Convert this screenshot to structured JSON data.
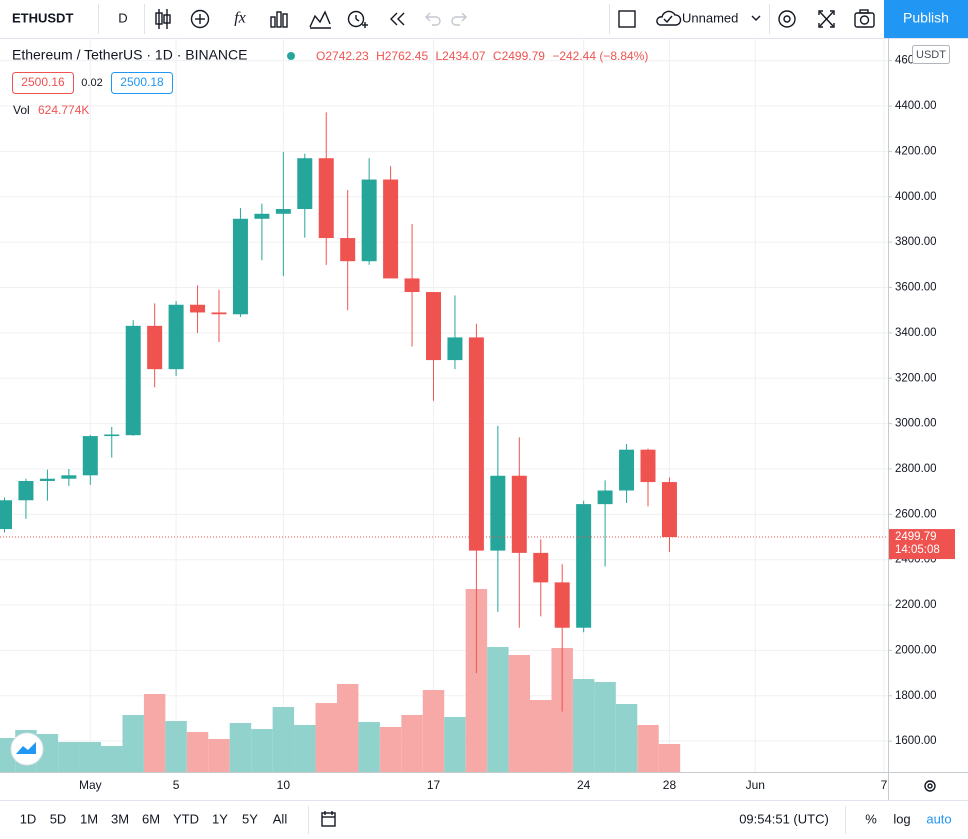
{
  "toolbar": {
    "symbol": "ETHUSDT",
    "interval": "D",
    "layout_name": "Unnamed",
    "publish": "Publish"
  },
  "legend": {
    "title": "Ethereum / TetherUS · 1D · BINANCE",
    "o": "O",
    "h": "H",
    "l": "L",
    "c": "C",
    "change": "−242.44 (−8.84%)",
    "sell": "2500.16",
    "spread": "0.02",
    "buy": "2500.18",
    "vol": "Vol",
    "volume_value": "624.774K"
  },
  "price_axis": {
    "currency": "USDT",
    "last_price": "2499.79",
    "countdown": "14:05:08"
  },
  "bottom_bar": {
    "ranges": [
      "1D",
      "5D",
      "1M",
      "3M",
      "6M",
      "YTD",
      "1Y",
      "5Y",
      "All"
    ],
    "time": "09:54:51 (UTC)",
    "percent": "%",
    "log": "log",
    "auto": "auto"
  },
  "chart_data": {
    "type": "candlestick",
    "categories": [
      null,
      null,
      null,
      null,
      "May",
      null,
      null,
      null,
      "5",
      null,
      null,
      null,
      null,
      "10",
      null,
      null,
      null,
      null,
      null,
      null,
      "17",
      null,
      null,
      null,
      null,
      null,
      null,
      "24",
      null,
      null,
      null,
      "28"
    ],
    "future_xticks": [
      "Jun",
      "7"
    ],
    "open": [
      2535,
      2662,
      2747,
      2757,
      2772,
      2945,
      2949,
      3431,
      3240,
      3524,
      3490,
      3482,
      3903,
      3925,
      3946,
      4170,
      3818,
      3716,
      4076,
      3640,
      3580,
      3280,
      3380,
      2440,
      2770,
      2430,
      2300,
      2100,
      2645,
      2705,
      2885,
      2742.23
    ],
    "high": [
      2675,
      2757,
      2797,
      2800,
      2950,
      2985,
      3456,
      3530,
      3540,
      3610,
      3590,
      3950,
      3970,
      4197,
      4190,
      4372,
      4030,
      4170,
      4135,
      3880,
      3580,
      3565,
      3440,
      2990,
      2940,
      2490,
      2380,
      2660,
      2750,
      2910,
      2890,
      2762.45
    ],
    "low": [
      2520,
      2580,
      2660,
      2725,
      2730,
      2850,
      2946,
      3160,
      3210,
      3400,
      3360,
      3470,
      3720,
      3650,
      3820,
      3700,
      3500,
      3700,
      3650,
      3340,
      3100,
      3240,
      1900,
      2170,
      2100,
      2150,
      1730,
      2080,
      2370,
      2650,
      2635,
      2434.07
    ],
    "close": [
      2662,
      2747,
      2757,
      2772,
      2945,
      2952,
      3431,
      3240,
      3524,
      3490,
      3482,
      3903,
      3925,
      3946,
      4170,
      3818,
      3716,
      4076,
      3640,
      3580,
      3280,
      3380,
      2440,
      2770,
      2430,
      2300,
      2100,
      2645,
      2705,
      2885,
      2742.23,
      2499.79
    ],
    "volume": [
      759000,
      937000,
      848000,
      669000,
      669000,
      580000,
      1272000,
      1740000,
      1138000,
      892000,
      736000,
      1093000,
      959000,
      1450000,
      1049000,
      1539000,
      1963000,
      1116000,
      1004000,
      1272000,
      1829000,
      1227000,
      4083000,
      2789000,
      2610000,
      1606000,
      2766000,
      2075000,
      2008000,
      1517000,
      1049000,
      624774
    ],
    "up_color": "#26a69a",
    "down_color": "#ef5350",
    "up_volume_color": "#92d2cc",
    "down_volume_color": "#f7a9a7",
    "ylim": [
      1464,
      4700
    ],
    "yticks": [
      {
        "value": 1600,
        "label": "1600.00"
      },
      {
        "value": 1800,
        "label": "1800.00"
      },
      {
        "value": 2000,
        "label": "2000.00"
      },
      {
        "value": 2200,
        "label": "2200.00"
      },
      {
        "value": 2400,
        "label": "2400.00"
      },
      {
        "value": 2600,
        "label": "2600.00"
      },
      {
        "value": 2800,
        "label": "2800.00"
      },
      {
        "value": 3000,
        "label": "3000.00"
      },
      {
        "value": 3200,
        "label": "3200.00"
      },
      {
        "value": 3400,
        "label": "3400.00"
      },
      {
        "value": 3600,
        "label": "3600.00"
      },
      {
        "value": 3800,
        "label": "3800.00"
      },
      {
        "value": 4000,
        "label": "4000.00"
      },
      {
        "value": 4200,
        "label": "4200.00"
      },
      {
        "value": 4400,
        "label": "4400.00"
      },
      {
        "value": 4600,
        "label": "4600.00"
      }
    ],
    "grid": true
  }
}
